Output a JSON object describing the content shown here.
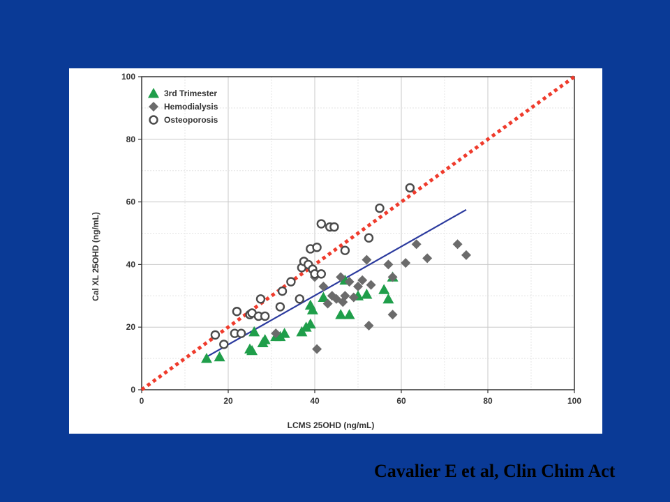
{
  "citation": "Cavalier E et al, Clin Chim Act",
  "chart_data": {
    "type": "scatter",
    "xlabel": "LCMS 25OHD (ng/mL)",
    "ylabel": "Cal XL 25OHD (ng/mL)",
    "xlim": [
      0,
      100
    ],
    "ylim": [
      0,
      100
    ],
    "x_ticks": [
      0,
      20,
      40,
      60,
      80,
      100
    ],
    "y_ticks": [
      0,
      20,
      40,
      60,
      80,
      100
    ],
    "grid": true,
    "legend_position": "top-left",
    "series": [
      {
        "name": "3rd Trimester",
        "marker": "triangle",
        "color": "#1f9e4a",
        "points": [
          [
            15,
            10
          ],
          [
            18,
            10.5
          ],
          [
            25,
            13
          ],
          [
            25.5,
            12.5
          ],
          [
            26,
            18.5
          ],
          [
            28,
            15
          ],
          [
            28.5,
            16
          ],
          [
            31,
            17
          ],
          [
            32,
            17
          ],
          [
            33,
            18
          ],
          [
            37,
            18.5
          ],
          [
            38,
            20
          ],
          [
            39,
            21
          ],
          [
            39,
            27
          ],
          [
            39.5,
            25.5
          ],
          [
            42,
            29.5
          ],
          [
            46,
            24
          ],
          [
            47,
            35
          ],
          [
            48,
            24
          ],
          [
            50,
            30
          ],
          [
            52,
            30.5
          ],
          [
            56,
            32
          ],
          [
            57,
            29
          ],
          [
            58,
            36
          ]
        ]
      },
      {
        "name": "Hemodialysis",
        "marker": "diamond",
        "color": "#6b6b6b",
        "points": [
          [
            31,
            18
          ],
          [
            40,
            36
          ],
          [
            40.5,
            13
          ],
          [
            42,
            33
          ],
          [
            43,
            27.5
          ],
          [
            44,
            30
          ],
          [
            45,
            29
          ],
          [
            46,
            36
          ],
          [
            46.5,
            28
          ],
          [
            47,
            30
          ],
          [
            48,
            34.5
          ],
          [
            49,
            29.5
          ],
          [
            50,
            33
          ],
          [
            51,
            35
          ],
          [
            52,
            41.5
          ],
          [
            52.5,
            20.5
          ],
          [
            53,
            33.5
          ],
          [
            57,
            40
          ],
          [
            58,
            24
          ],
          [
            58,
            36
          ],
          [
            61,
            40.5
          ],
          [
            63.5,
            46.5
          ],
          [
            66,
            42
          ],
          [
            73,
            46.5
          ],
          [
            75,
            43
          ]
        ]
      },
      {
        "name": "Osteoporosis",
        "marker": "circle",
        "color": "#4a4a4a",
        "points": [
          [
            17,
            17.5
          ],
          [
            19,
            14.5
          ],
          [
            21.5,
            18
          ],
          [
            22,
            25
          ],
          [
            23,
            18
          ],
          [
            25,
            24
          ],
          [
            25.5,
            24.5
          ],
          [
            27,
            23.5
          ],
          [
            27.5,
            29
          ],
          [
            28.5,
            23.5
          ],
          [
            32,
            26.5
          ],
          [
            32.5,
            31.5
          ],
          [
            34.5,
            34.5
          ],
          [
            36.5,
            29
          ],
          [
            37,
            39
          ],
          [
            37.5,
            41
          ],
          [
            38.5,
            40
          ],
          [
            39,
            45
          ],
          [
            39.5,
            38.5
          ],
          [
            40,
            37
          ],
          [
            40.5,
            45.5
          ],
          [
            41.5,
            37
          ],
          [
            41.5,
            53
          ],
          [
            43.5,
            52
          ],
          [
            44.5,
            52
          ],
          [
            47,
            44.5
          ],
          [
            52.5,
            48.5
          ],
          [
            55,
            58
          ],
          [
            62,
            64.5
          ]
        ]
      }
    ],
    "lines": [
      {
        "kind": "identity",
        "style": "dotted",
        "color": "#ef3b2c",
        "from": [
          0,
          0
        ],
        "to": [
          100,
          100
        ]
      },
      {
        "kind": "regression",
        "style": "solid",
        "color": "#2b3a9e",
        "from": [
          15,
          10.5
        ],
        "to": [
          75,
          57.5
        ]
      }
    ]
  }
}
